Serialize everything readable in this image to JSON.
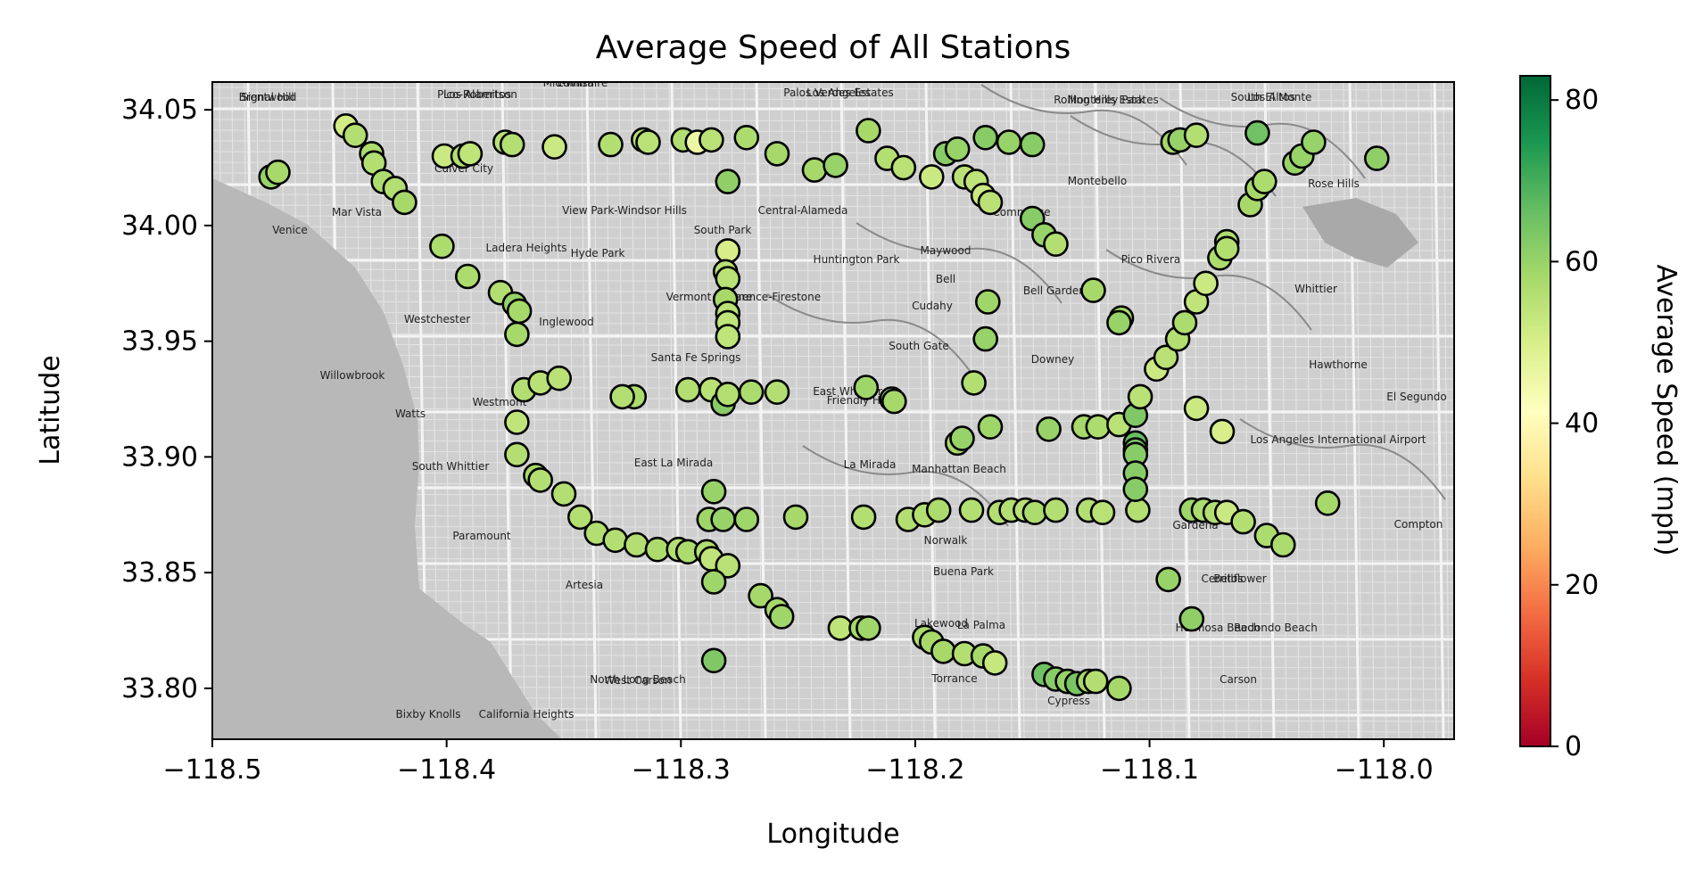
{
  "chart_data": {
    "type": "scatter",
    "title": "Average Speed of All Stations",
    "xlabel": "Longitude",
    "ylabel": "Latitude",
    "colorbar_label": "Average Speed (mph)",
    "xlim": [
      -118.5,
      -117.97
    ],
    "ylim": [
      33.778,
      34.062
    ],
    "clim": [
      0,
      83
    ],
    "x_ticks": [
      -118.5,
      -118.4,
      -118.3,
      -118.2,
      -118.1,
      -118.0
    ],
    "x_tick_labels": [
      "−118.5",
      "−118.4",
      "−118.3",
      "−118.2",
      "−118.1",
      "−118.0"
    ],
    "y_ticks": [
      33.8,
      33.85,
      33.9,
      33.95,
      34.0,
      34.05
    ],
    "y_tick_labels": [
      "33.80",
      "33.85",
      "33.90",
      "33.95",
      "34.00",
      "34.05"
    ],
    "colorbar_ticks": [
      0,
      20,
      40,
      60,
      80
    ],
    "colorbar_tick_labels": [
      "0",
      "20",
      "40",
      "60",
      "80"
    ],
    "colormap": [
      "#a50026",
      "#d73027",
      "#f46d43",
      "#fdae61",
      "#fee08b",
      "#ffffbf",
      "#d9ef8b",
      "#a6d96a",
      "#66bd63",
      "#1a9850",
      "#006837"
    ],
    "grid": false,
    "basemap_labels": [
      "Brentwood",
      "Pico-Robertson",
      "Mid-Wilshire",
      "Los Angeles",
      "Monterey Park",
      "South El Monte",
      "Culver City",
      "Mar Vista",
      "Venice",
      "View Park-Windsor Hills",
      "Central-Alameda",
      "South Park",
      "Ladera Heights",
      "Hyde Park",
      "Huntington Park",
      "Maywood",
      "Commerce",
      "Montebello",
      "Rose Hills",
      "Pico Rivera",
      "Whittier",
      "Inglewood",
      "Westchester",
      "Vermont Square",
      "Florence-Firestone",
      "Bell",
      "Bell Gardens",
      "Cudahy",
      "South Gate",
      "Downey",
      "Santa Fe Springs",
      "East Whittier",
      "Friendly Hills",
      "Westmont",
      "Watts",
      "Willowbrook",
      "Hawthorne",
      "El Segundo",
      "Los Angeles International Airport",
      "South Whittier",
      "East La Mirada",
      "La Mirada",
      "Manhattan Beach",
      "Gardena",
      "Compton",
      "Paramount",
      "Norwalk",
      "Bellflower",
      "Artesia",
      "Cerritos",
      "Buena Park",
      "Hermosa Beach",
      "North Long Beach",
      "Lakewood",
      "La Palma",
      "Redondo Beach",
      "Torrance",
      "Carson",
      "West Carson",
      "Bixby Knolls",
      "California Heights",
      "Cypress",
      "Signal Hill",
      "Los Alamitos",
      "Lomita",
      "Palos Verdes Estates",
      "Rolling Hills Estates",
      "Los Altos"
    ],
    "points": [
      {
        "lon": -118.475,
        "lat": 34.021,
        "speed": 60
      },
      {
        "lon": -118.472,
        "lat": 34.023,
        "speed": 58
      },
      {
        "lon": -118.443,
        "lat": 34.043,
        "speed": 51
      },
      {
        "lon": -118.439,
        "lat": 34.039,
        "speed": 56
      },
      {
        "lon": -118.432,
        "lat": 34.031,
        "speed": 57
      },
      {
        "lon": -118.431,
        "lat": 34.027,
        "speed": 56
      },
      {
        "lon": -118.427,
        "lat": 34.019,
        "speed": 57
      },
      {
        "lon": -118.422,
        "lat": 34.016,
        "speed": 56
      },
      {
        "lon": -118.418,
        "lat": 34.01,
        "speed": 58
      },
      {
        "lon": -118.401,
        "lat": 34.03,
        "speed": 52
      },
      {
        "lon": -118.393,
        "lat": 34.03,
        "speed": 56
      },
      {
        "lon": -118.39,
        "lat": 34.031,
        "speed": 54
      },
      {
        "lon": -118.375,
        "lat": 34.036,
        "speed": 55
      },
      {
        "lon": -118.372,
        "lat": 34.035,
        "speed": 56
      },
      {
        "lon": -118.354,
        "lat": 34.034,
        "speed": 52
      },
      {
        "lon": -118.33,
        "lat": 34.035,
        "speed": 56
      },
      {
        "lon": -118.316,
        "lat": 34.037,
        "speed": 56
      },
      {
        "lon": -118.314,
        "lat": 34.036,
        "speed": 55
      },
      {
        "lon": -118.299,
        "lat": 34.037,
        "speed": 56
      },
      {
        "lon": -118.293,
        "lat": 34.036,
        "speed": 46
      },
      {
        "lon": -118.287,
        "lat": 34.037,
        "speed": 55
      },
      {
        "lon": -118.272,
        "lat": 34.038,
        "speed": 57
      },
      {
        "lon": -118.259,
        "lat": 34.031,
        "speed": 58
      },
      {
        "lon": -118.243,
        "lat": 34.024,
        "speed": 58
      },
      {
        "lon": -118.234,
        "lat": 34.026,
        "speed": 60
      },
      {
        "lon": -118.22,
        "lat": 34.041,
        "speed": 58
      },
      {
        "lon": -118.212,
        "lat": 34.029,
        "speed": 56
      },
      {
        "lon": -118.205,
        "lat": 34.025,
        "speed": 55
      },
      {
        "lon": -118.193,
        "lat": 34.021,
        "speed": 52
      },
      {
        "lon": -118.187,
        "lat": 34.031,
        "speed": 62
      },
      {
        "lon": -118.182,
        "lat": 34.033,
        "speed": 60
      },
      {
        "lon": -118.179,
        "lat": 34.021,
        "speed": 55
      },
      {
        "lon": -118.174,
        "lat": 34.019,
        "speed": 54
      },
      {
        "lon": -118.171,
        "lat": 34.013,
        "speed": 52
      },
      {
        "lon": -118.168,
        "lat": 34.01,
        "speed": 55
      },
      {
        "lon": -118.17,
        "lat": 34.038,
        "speed": 62
      },
      {
        "lon": -118.16,
        "lat": 34.036,
        "speed": 60
      },
      {
        "lon": -118.15,
        "lat": 34.035,
        "speed": 62
      },
      {
        "lon": -118.15,
        "lat": 34.003,
        "speed": 62
      },
      {
        "lon": -118.145,
        "lat": 33.996,
        "speed": 60
      },
      {
        "lon": -118.14,
        "lat": 33.992,
        "speed": 56
      },
      {
        "lon": -118.28,
        "lat": 34.019,
        "speed": 61
      },
      {
        "lon": -118.28,
        "lat": 33.989,
        "speed": 50
      },
      {
        "lon": -118.281,
        "lat": 33.98,
        "speed": 55
      },
      {
        "lon": -118.28,
        "lat": 33.977,
        "speed": 55
      },
      {
        "lon": -118.281,
        "lat": 33.968,
        "speed": 58
      },
      {
        "lon": -118.28,
        "lat": 33.962,
        "speed": 55
      },
      {
        "lon": -118.28,
        "lat": 33.958,
        "speed": 54
      },
      {
        "lon": -118.28,
        "lat": 33.952,
        "speed": 54
      },
      {
        "lon": -118.402,
        "lat": 33.991,
        "speed": 57
      },
      {
        "lon": -118.391,
        "lat": 33.978,
        "speed": 57
      },
      {
        "lon": -118.377,
        "lat": 33.971,
        "speed": 56
      },
      {
        "lon": -118.371,
        "lat": 33.966,
        "speed": 60
      },
      {
        "lon": -118.369,
        "lat": 33.963,
        "speed": 58
      },
      {
        "lon": -118.37,
        "lat": 33.953,
        "speed": 58
      },
      {
        "lon": -118.367,
        "lat": 33.929,
        "speed": 56
      },
      {
        "lon": -118.36,
        "lat": 33.932,
        "speed": 55
      },
      {
        "lon": -118.352,
        "lat": 33.934,
        "speed": 55
      },
      {
        "lon": -118.37,
        "lat": 33.915,
        "speed": 54
      },
      {
        "lon": -118.37,
        "lat": 33.901,
        "speed": 56
      },
      {
        "lon": -118.362,
        "lat": 33.892,
        "speed": 58
      },
      {
        "lon": -118.36,
        "lat": 33.89,
        "speed": 56
      },
      {
        "lon": -118.35,
        "lat": 33.884,
        "speed": 56
      },
      {
        "lon": -118.343,
        "lat": 33.874,
        "speed": 56
      },
      {
        "lon": -118.336,
        "lat": 33.867,
        "speed": 56
      },
      {
        "lon": -118.328,
        "lat": 33.864,
        "speed": 56
      },
      {
        "lon": -118.319,
        "lat": 33.862,
        "speed": 56
      },
      {
        "lon": -118.31,
        "lat": 33.86,
        "speed": 57
      },
      {
        "lon": -118.301,
        "lat": 33.86,
        "speed": 56
      },
      {
        "lon": -118.297,
        "lat": 33.859,
        "speed": 57
      },
      {
        "lon": -118.289,
        "lat": 33.859,
        "speed": 56
      },
      {
        "lon": -118.287,
        "lat": 33.856,
        "speed": 54
      },
      {
        "lon": -118.28,
        "lat": 33.853,
        "speed": 55
      },
      {
        "lon": -118.286,
        "lat": 33.846,
        "speed": 59
      },
      {
        "lon": -118.286,
        "lat": 33.885,
        "speed": 60
      },
      {
        "lon": -118.288,
        "lat": 33.873,
        "speed": 59
      },
      {
        "lon": -118.282,
        "lat": 33.873,
        "speed": 60
      },
      {
        "lon": -118.272,
        "lat": 33.873,
        "speed": 59
      },
      {
        "lon": -118.251,
        "lat": 33.874,
        "speed": 58
      },
      {
        "lon": -118.222,
        "lat": 33.874,
        "speed": 56
      },
      {
        "lon": -118.203,
        "lat": 33.873,
        "speed": 56
      },
      {
        "lon": -118.196,
        "lat": 33.875,
        "speed": 56
      },
      {
        "lon": -118.19,
        "lat": 33.877,
        "speed": 57
      },
      {
        "lon": -118.176,
        "lat": 33.877,
        "speed": 56
      },
      {
        "lon": -118.164,
        "lat": 33.876,
        "speed": 56
      },
      {
        "lon": -118.159,
        "lat": 33.877,
        "speed": 56
      },
      {
        "lon": -118.153,
        "lat": 33.877,
        "speed": 55
      },
      {
        "lon": -118.149,
        "lat": 33.876,
        "speed": 57
      },
      {
        "lon": -118.14,
        "lat": 33.877,
        "speed": 56
      },
      {
        "lon": -118.126,
        "lat": 33.877,
        "speed": 56
      },
      {
        "lon": -118.12,
        "lat": 33.876,
        "speed": 55
      },
      {
        "lon": -118.105,
        "lat": 33.877,
        "speed": 56
      },
      {
        "lon": -118.082,
        "lat": 33.877,
        "speed": 59
      },
      {
        "lon": -118.077,
        "lat": 33.877,
        "speed": 57
      },
      {
        "lon": -118.072,
        "lat": 33.876,
        "speed": 56
      },
      {
        "lon": -118.067,
        "lat": 33.876,
        "speed": 52
      },
      {
        "lon": -118.06,
        "lat": 33.872,
        "speed": 56
      },
      {
        "lon": -118.05,
        "lat": 33.866,
        "speed": 57
      },
      {
        "lon": -118.043,
        "lat": 33.862,
        "speed": 57
      },
      {
        "lon": -118.024,
        "lat": 33.88,
        "speed": 58
      },
      {
        "lon": -118.297,
        "lat": 33.929,
        "speed": 56
      },
      {
        "lon": -118.287,
        "lat": 33.929,
        "speed": 55
      },
      {
        "lon": -118.282,
        "lat": 33.923,
        "speed": 62
      },
      {
        "lon": -118.28,
        "lat": 33.927,
        "speed": 56
      },
      {
        "lon": -118.27,
        "lat": 33.928,
        "speed": 57
      },
      {
        "lon": -118.259,
        "lat": 33.928,
        "speed": 56
      },
      {
        "lon": -118.32,
        "lat": 33.926,
        "speed": 57
      },
      {
        "lon": -118.325,
        "lat": 33.926,
        "speed": 56
      },
      {
        "lon": -118.221,
        "lat": 33.93,
        "speed": 59
      },
      {
        "lon": -118.21,
        "lat": 33.925,
        "speed": 60
      },
      {
        "lon": -118.209,
        "lat": 33.924,
        "speed": 58
      },
      {
        "lon": -118.175,
        "lat": 33.932,
        "speed": 56
      },
      {
        "lon": -118.17,
        "lat": 33.951,
        "speed": 60
      },
      {
        "lon": -118.169,
        "lat": 33.967,
        "speed": 59
      },
      {
        "lon": -118.182,
        "lat": 33.906,
        "speed": 58
      },
      {
        "lon": -118.18,
        "lat": 33.908,
        "speed": 60
      },
      {
        "lon": -118.168,
        "lat": 33.913,
        "speed": 59
      },
      {
        "lon": -118.143,
        "lat": 33.912,
        "speed": 60
      },
      {
        "lon": -118.124,
        "lat": 33.972,
        "speed": 58
      },
      {
        "lon": -118.112,
        "lat": 33.96,
        "speed": 58
      },
      {
        "lon": -118.113,
        "lat": 33.958,
        "speed": 60
      },
      {
        "lon": -118.128,
        "lat": 33.913,
        "speed": 58
      },
      {
        "lon": -118.122,
        "lat": 33.913,
        "speed": 57
      },
      {
        "lon": -118.113,
        "lat": 33.914,
        "speed": 55
      },
      {
        "lon": -118.106,
        "lat": 33.918,
        "speed": 63
      },
      {
        "lon": -118.106,
        "lat": 33.906,
        "speed": 66
      },
      {
        "lon": -118.106,
        "lat": 33.903,
        "speed": 64
      },
      {
        "lon": -118.106,
        "lat": 33.901,
        "speed": 62
      },
      {
        "lon": -118.106,
        "lat": 33.893,
        "speed": 62
      },
      {
        "lon": -118.106,
        "lat": 33.886,
        "speed": 62
      },
      {
        "lon": -118.104,
        "lat": 33.926,
        "speed": 55
      },
      {
        "lon": -118.097,
        "lat": 33.938,
        "speed": 52
      },
      {
        "lon": -118.093,
        "lat": 33.943,
        "speed": 55
      },
      {
        "lon": -118.088,
        "lat": 33.951,
        "speed": 56
      },
      {
        "lon": -118.085,
        "lat": 33.958,
        "speed": 57
      },
      {
        "lon": -118.08,
        "lat": 33.967,
        "speed": 54
      },
      {
        "lon": -118.076,
        "lat": 33.975,
        "speed": 52
      },
      {
        "lon": -118.07,
        "lat": 33.986,
        "speed": 57
      },
      {
        "lon": -118.067,
        "lat": 33.993,
        "speed": 57
      },
      {
        "lon": -118.067,
        "lat": 33.99,
        "speed": 56
      },
      {
        "lon": -118.08,
        "lat": 33.921,
        "speed": 52
      },
      {
        "lon": -118.069,
        "lat": 33.911,
        "speed": 50
      },
      {
        "lon": -118.092,
        "lat": 33.847,
        "speed": 60
      },
      {
        "lon": -118.082,
        "lat": 33.83,
        "speed": 61
      },
      {
        "lon": -118.057,
        "lat": 34.009,
        "speed": 58
      },
      {
        "lon": -118.054,
        "lat": 34.016,
        "speed": 58
      },
      {
        "lon": -118.051,
        "lat": 34.019,
        "speed": 57
      },
      {
        "lon": -118.038,
        "lat": 34.027,
        "speed": 60
      },
      {
        "lon": -118.035,
        "lat": 34.03,
        "speed": 60
      },
      {
        "lon": -118.03,
        "lat": 34.036,
        "speed": 60
      },
      {
        "lon": -118.003,
        "lat": 34.029,
        "speed": 61
      },
      {
        "lon": -118.054,
        "lat": 34.04,
        "speed": 65
      },
      {
        "lon": -118.09,
        "lat": 34.036,
        "speed": 58
      },
      {
        "lon": -118.087,
        "lat": 34.037,
        "speed": 60
      },
      {
        "lon": -118.08,
        "lat": 34.039,
        "speed": 56
      },
      {
        "lon": -118.266,
        "lat": 33.84,
        "speed": 58
      },
      {
        "lon": -118.259,
        "lat": 33.834,
        "speed": 58
      },
      {
        "lon": -118.257,
        "lat": 33.831,
        "speed": 59
      },
      {
        "lon": -118.232,
        "lat": 33.826,
        "speed": 54
      },
      {
        "lon": -118.223,
        "lat": 33.826,
        "speed": 58
      },
      {
        "lon": -118.22,
        "lat": 33.826,
        "speed": 59
      },
      {
        "lon": -118.286,
        "lat": 33.812,
        "speed": 63
      },
      {
        "lon": -118.196,
        "lat": 33.822,
        "speed": 57
      },
      {
        "lon": -118.193,
        "lat": 33.82,
        "speed": 58
      },
      {
        "lon": -118.188,
        "lat": 33.816,
        "speed": 58
      },
      {
        "lon": -118.179,
        "lat": 33.815,
        "speed": 56
      },
      {
        "lon": -118.171,
        "lat": 33.814,
        "speed": 58
      },
      {
        "lon": -118.166,
        "lat": 33.811,
        "speed": 53
      },
      {
        "lon": -118.145,
        "lat": 33.806,
        "speed": 65
      },
      {
        "lon": -118.14,
        "lat": 33.804,
        "speed": 62
      },
      {
        "lon": -118.135,
        "lat": 33.803,
        "speed": 60
      },
      {
        "lon": -118.131,
        "lat": 33.802,
        "speed": 64
      },
      {
        "lon": -118.126,
        "lat": 33.803,
        "speed": 58
      },
      {
        "lon": -118.123,
        "lat": 33.803,
        "speed": 56
      },
      {
        "lon": -118.113,
        "lat": 33.8,
        "speed": 58
      }
    ]
  }
}
